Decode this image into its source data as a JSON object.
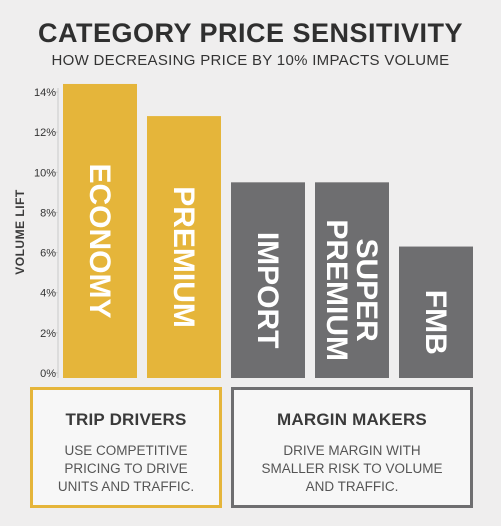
{
  "title": "CATEGORY PRICE SENSITIVITY",
  "subtitle": "HOW DECREASING PRICE BY 10% IMPACTS VOLUME",
  "chart_data": {
    "type": "bar",
    "ylabel": "VOLUME LIFT",
    "ylim": [
      0,
      14
    ],
    "yticks": [
      "0%",
      "2%",
      "4%",
      "6%",
      "8%",
      "10%",
      "12%",
      "14%"
    ],
    "categories": [
      "ECONOMY",
      "PREMIUM",
      "IMPORT",
      "SUPER PREMIUM",
      "FMB"
    ],
    "bar_labels": [
      [
        "ECONOMY"
      ],
      [
        "PREMIUM"
      ],
      [
        "IMPORT"
      ],
      [
        "SUPER",
        "PREMIUM"
      ],
      [
        "FMB"
      ]
    ],
    "values": [
      14.4,
      12.8,
      9.5,
      9.5,
      6.3
    ],
    "colors": [
      "#e5b53a",
      "#e5b53a",
      "#6e6e70",
      "#6e6e70",
      "#6e6e70"
    ]
  },
  "groups": {
    "trip_drivers": {
      "title": "TRIP DRIVERS",
      "body": "USE COMPETITIVE PRICING TO DRIVE UNITS AND TRAFFIC.",
      "color": "#e5b53a"
    },
    "margin_makers": {
      "title": "MARGIN MAKERS",
      "body": "DRIVE MARGIN WITH SMALLER RISK TO VOLUME AND TRAFFIC.",
      "color": "#6e6e70"
    }
  }
}
